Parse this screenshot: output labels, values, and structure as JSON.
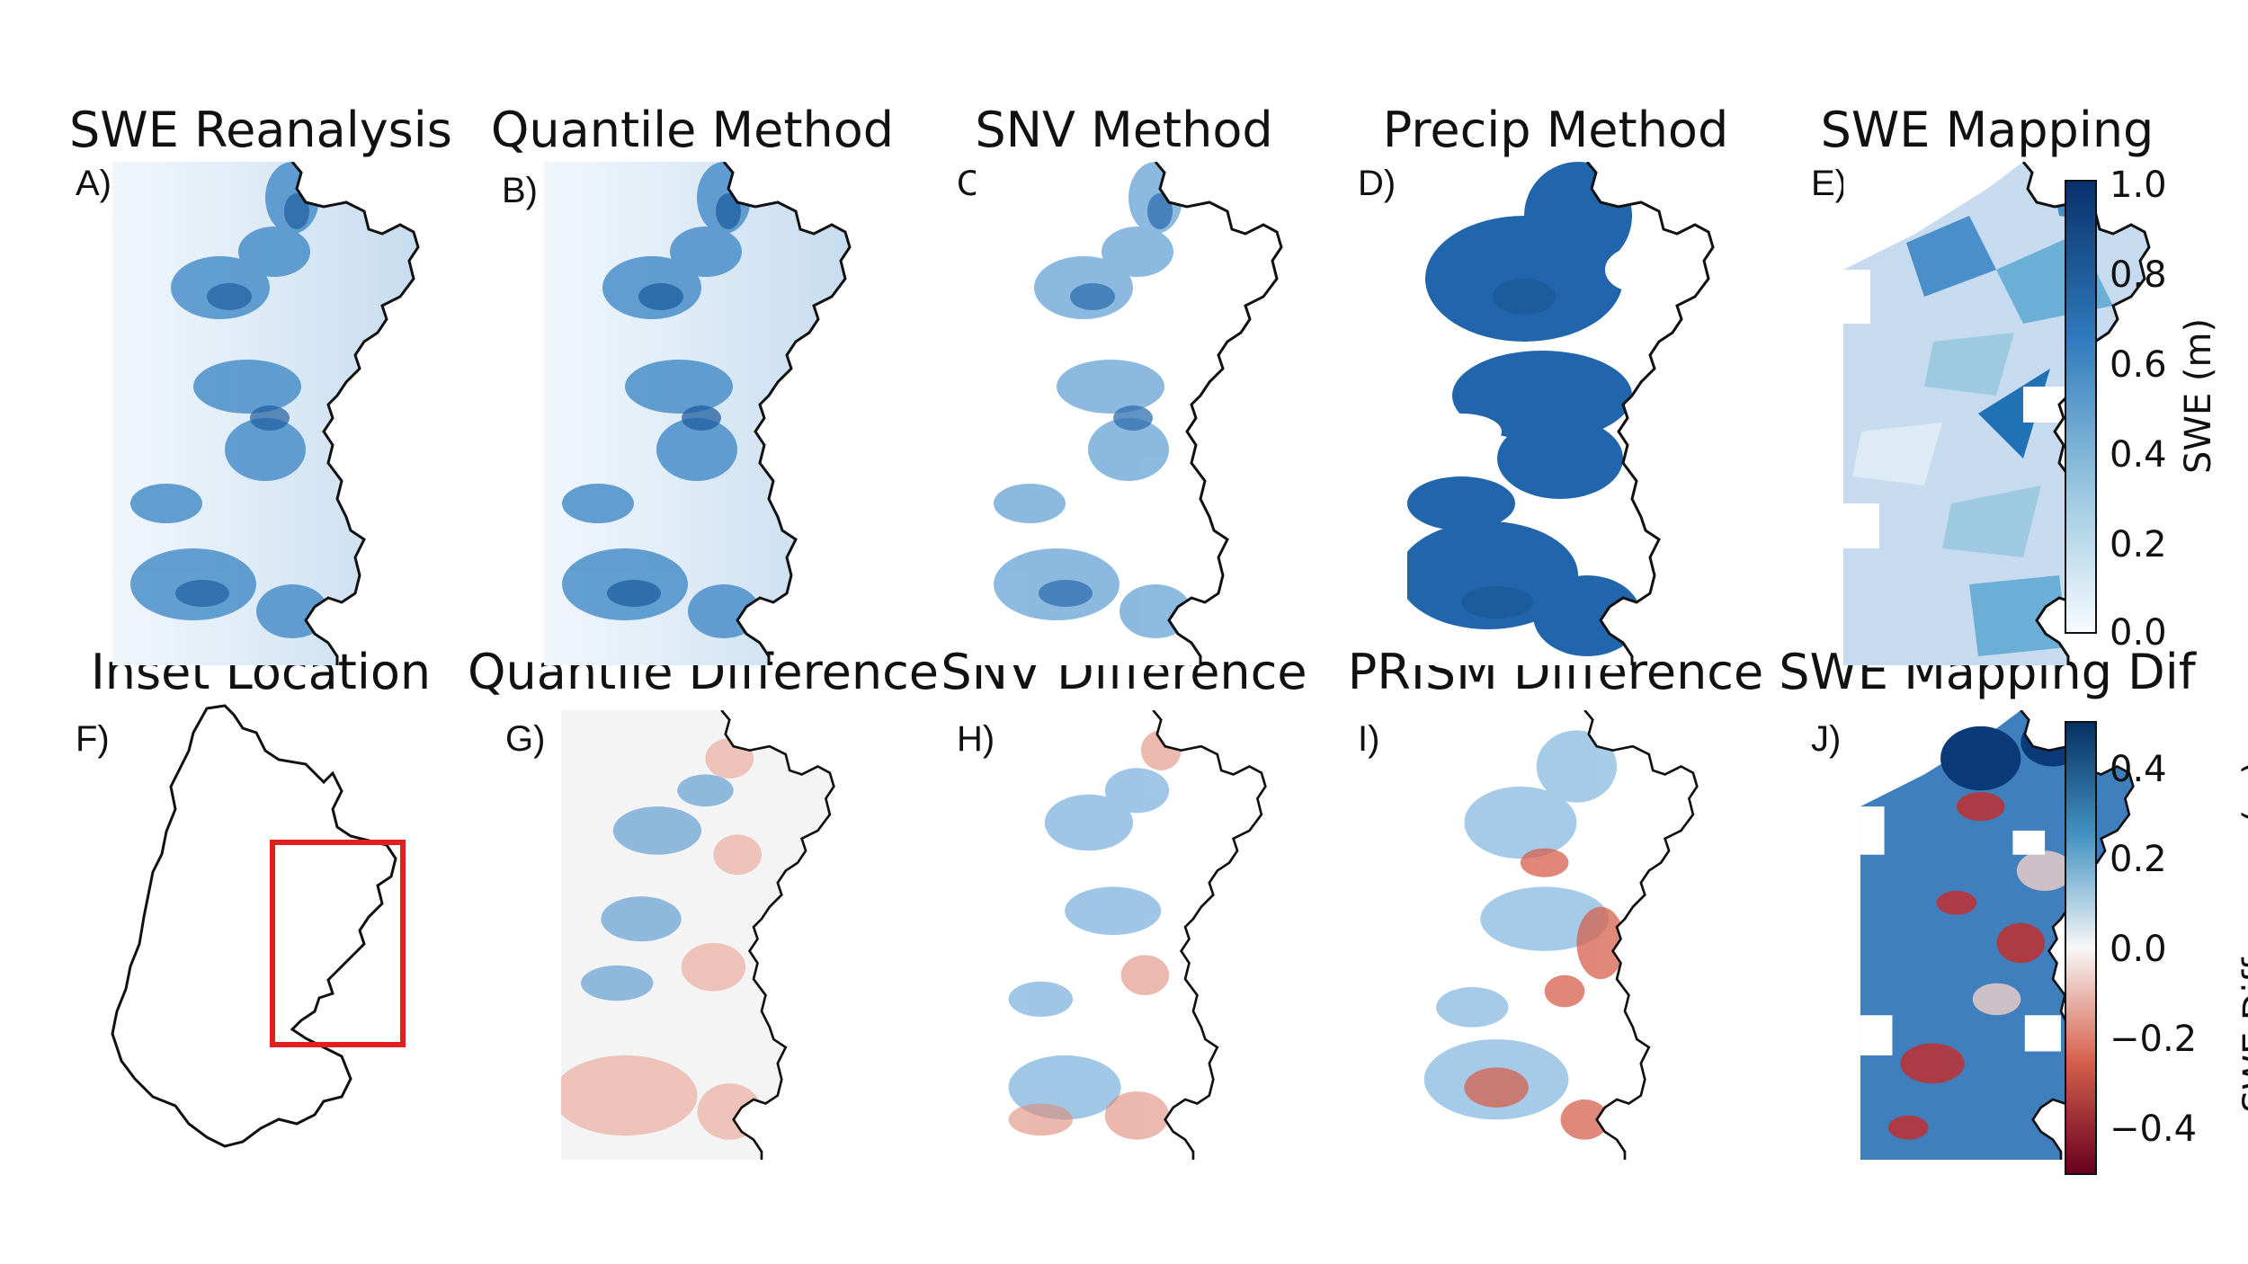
{
  "titles": {
    "a": "SWE Reanalysis",
    "b": "Quantile Method",
    "c": "SNV Method",
    "d": "Precip Method",
    "e": "SWE Mapping",
    "f": "Inset Location",
    "g": "Quantile Difference",
    "h": "SNV Difference",
    "i": "PRISM Difference",
    "j": "SWE Mapping Dif"
  },
  "labels": {
    "a": "A)",
    "b": "B)",
    "c": "C)",
    "d": "D)",
    "e": "E)",
    "f": "F)",
    "g": "G)",
    "h": "H)",
    "i": "I)",
    "j": "J)"
  },
  "colorbar_swe": {
    "label": "SWE (m)",
    "ticks": [
      "1.0",
      "0.8",
      "0.6",
      "0.4",
      "0.2",
      "0.0"
    ],
    "colors": [
      "#08306b",
      "#2f7bbd",
      "#9ecae1",
      "#f7fbff"
    ]
  },
  "colorbar_diff": {
    "label": "SWE Difference (m)",
    "ticks": [
      "0.4",
      "0.2",
      "0.0",
      "−0.2",
      "−0.4"
    ],
    "colors": [
      "#053061",
      "#4393c3",
      "#f7f7f7",
      "#d6604d",
      "#67001f"
    ]
  },
  "inset": {
    "box_color": "#e02020"
  }
}
